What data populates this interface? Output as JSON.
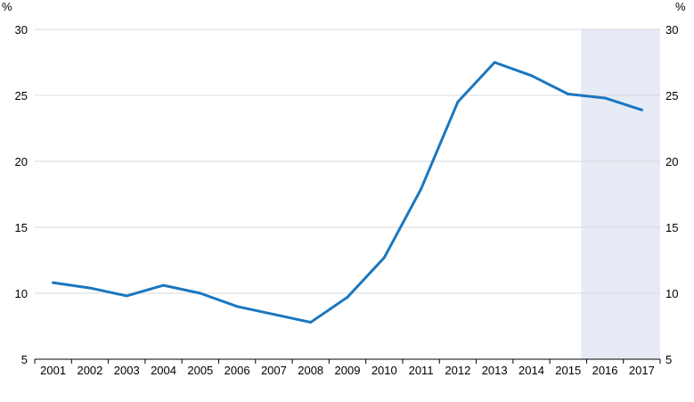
{
  "chart_data": {
    "type": "line",
    "title": "",
    "xlabel": "",
    "ylabel": "%",
    "y_unit_left": "%",
    "y_unit_right": "%",
    "ylim": [
      5,
      30
    ],
    "yticks": [
      5,
      10,
      15,
      20,
      25,
      30
    ],
    "grid": true,
    "legend": "none",
    "categories": [
      "2001",
      "2002",
      "2003",
      "2004",
      "2005",
      "2006",
      "2007",
      "2008",
      "2009",
      "2010",
      "2011",
      "2012",
      "2013",
      "2014",
      "2015",
      "2016",
      "2017"
    ],
    "series": [
      {
        "values": [
          10.8,
          10.4,
          9.8,
          10.6,
          10.0,
          9.0,
          8.4,
          7.8,
          9.7,
          12.7,
          17.9,
          24.5,
          27.5,
          26.5,
          25.1,
          24.8,
          23.9
        ],
        "color": "#1a77c0"
      }
    ],
    "shaded_region": {
      "from": "2015",
      "to": "2017",
      "color": "#e6ebf6"
    }
  }
}
